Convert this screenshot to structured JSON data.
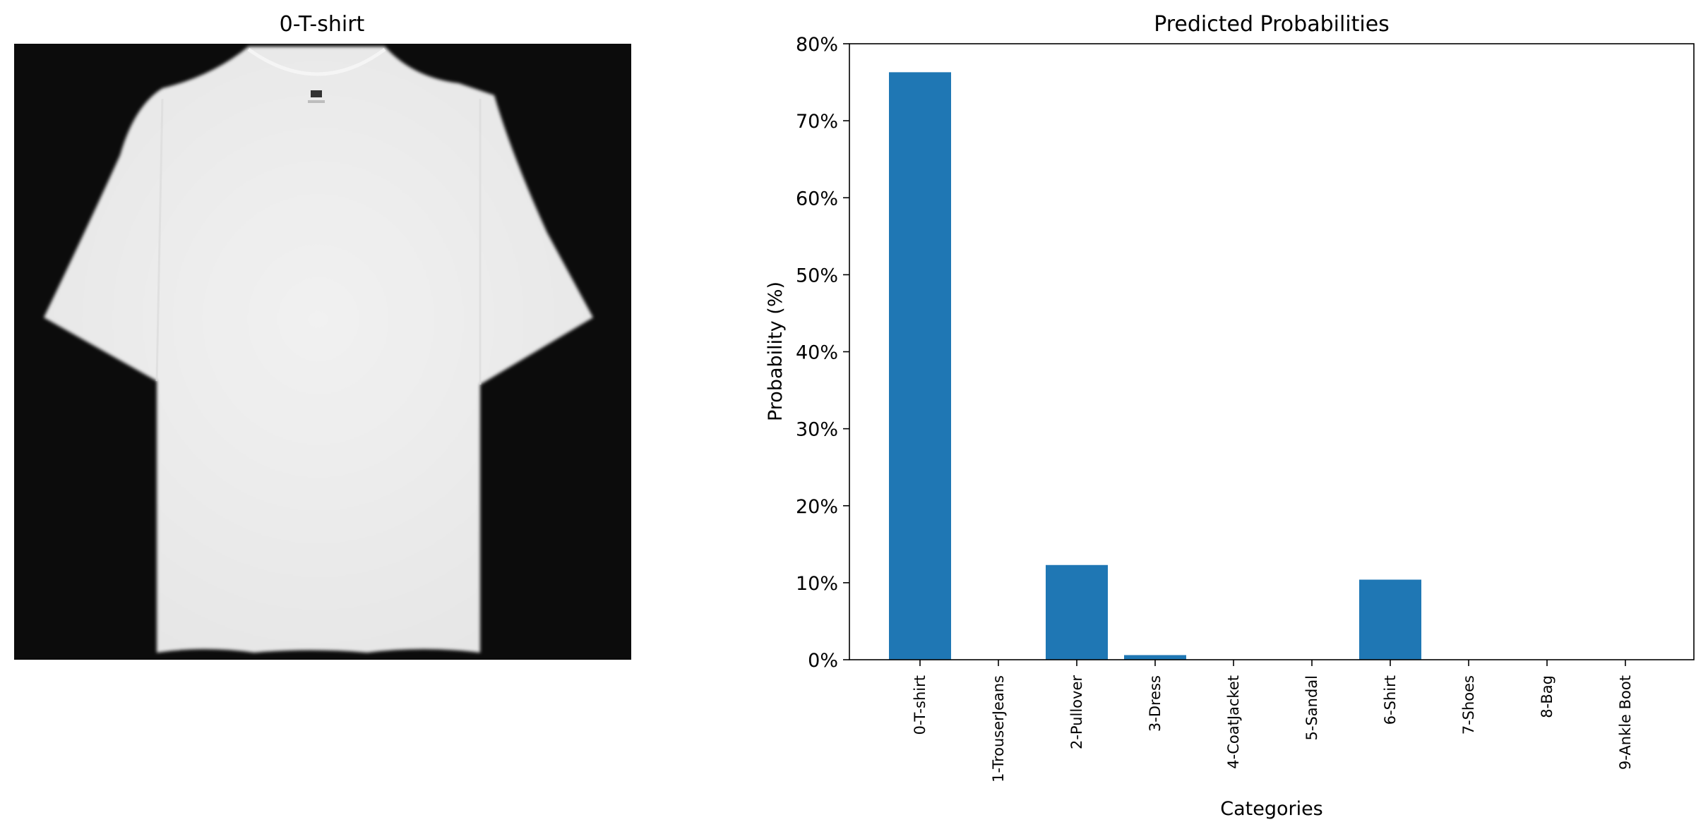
{
  "image_panel": {
    "title": "0-T-shirt"
  },
  "chart_data": {
    "type": "bar",
    "title": "Predicted Probabilities",
    "xlabel": "Categories",
    "ylabel": "Probability (%)",
    "categories": [
      "0-T-shirt",
      "1-TrouserJeans",
      "2-Pullover",
      "3-Dress",
      "4-CoatJacket",
      "5-Sandal",
      "6-Shirt",
      "7-Shoes",
      "8-Bag",
      "9-Ankle Boot"
    ],
    "values": [
      76.3,
      0.0,
      12.3,
      0.6,
      0.0,
      0.0,
      10.4,
      0.0,
      0.0,
      0.0
    ],
    "ylim": [
      0,
      80
    ],
    "yticks": [
      0,
      10,
      20,
      30,
      40,
      50,
      60,
      70,
      80
    ],
    "ytick_labels": [
      "0%",
      "10%",
      "20%",
      "30%",
      "40%",
      "50%",
      "60%",
      "70%",
      "80%"
    ],
    "bar_color": "#1f77b4",
    "grid": false
  }
}
